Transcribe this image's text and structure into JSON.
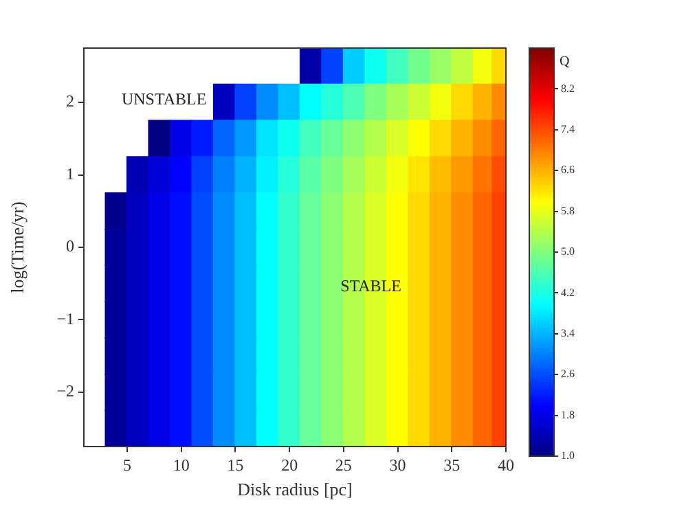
{
  "chart_data": {
    "type": "heatmap",
    "xlabel": "Disk radius [pc]",
    "ylabel": "log(Time/yr)",
    "clabel": "Q",
    "x": [
      4,
      6,
      8,
      10,
      12,
      14,
      16,
      18,
      20,
      22,
      24,
      26,
      28,
      30,
      32,
      34,
      36,
      38,
      39.5
    ],
    "y_categories": [
      null,
      "2",
      null,
      "1",
      null,
      "0",
      null,
      "−1",
      null,
      "−2",
      null
    ],
    "cells": [
      [
        null,
        null,
        null,
        null,
        null,
        null,
        null,
        null,
        null,
        1.3,
        2.5,
        3.6,
        4.1,
        4.5,
        4.9,
        5.2,
        5.5,
        5.9,
        6.3
      ],
      [
        null,
        null,
        null,
        null,
        null,
        1.5,
        2.5,
        3.1,
        3.5,
        4.0,
        4.3,
        4.6,
        5.0,
        5.3,
        5.6,
        5.9,
        6.3,
        6.6,
        6.9
      ],
      [
        null,
        null,
        1.0,
        1.8,
        2.2,
        2.8,
        3.2,
        3.8,
        4.1,
        4.5,
        4.8,
        5.1,
        5.4,
        5.7,
        6.0,
        6.3,
        6.6,
        6.9,
        7.2
      ],
      [
        null,
        1.4,
        1.7,
        2.0,
        2.5,
        3.0,
        3.4,
        3.9,
        4.3,
        4.7,
        5.0,
        5.3,
        5.6,
        5.9,
        6.2,
        6.5,
        6.8,
        7.1,
        7.4
      ],
      [
        1.1,
        1.5,
        1.8,
        2.1,
        2.6,
        3.1,
        3.5,
        4.0,
        4.4,
        4.8,
        5.1,
        5.4,
        5.7,
        6.0,
        6.3,
        6.6,
        6.9,
        7.2,
        7.5
      ],
      [
        1.2,
        1.5,
        1.8,
        2.1,
        2.6,
        3.1,
        3.5,
        4.0,
        4.4,
        4.8,
        5.1,
        5.4,
        5.7,
        6.0,
        6.3,
        6.6,
        6.9,
        7.2,
        7.5
      ],
      [
        1.2,
        1.5,
        1.8,
        2.1,
        2.6,
        3.1,
        3.5,
        4.0,
        4.4,
        4.8,
        5.1,
        5.4,
        5.7,
        6.0,
        6.3,
        6.6,
        6.9,
        7.2,
        7.5
      ],
      [
        1.2,
        1.5,
        1.8,
        2.1,
        2.6,
        3.1,
        3.5,
        4.0,
        4.4,
        4.8,
        5.1,
        5.4,
        5.7,
        6.0,
        6.3,
        6.6,
        6.9,
        7.2,
        7.5
      ],
      [
        1.2,
        1.5,
        1.8,
        2.1,
        2.6,
        3.1,
        3.5,
        4.0,
        4.4,
        4.8,
        5.1,
        5.4,
        5.7,
        6.0,
        6.3,
        6.6,
        6.9,
        7.2,
        7.5
      ],
      [
        1.2,
        1.5,
        1.8,
        2.1,
        2.6,
        3.1,
        3.5,
        4.0,
        4.4,
        4.8,
        5.1,
        5.4,
        5.7,
        6.0,
        6.3,
        6.6,
        6.9,
        7.2,
        7.5
      ],
      [
        1.2,
        1.5,
        1.8,
        2.1,
        2.6,
        3.1,
        3.5,
        4.0,
        4.4,
        4.8,
        5.1,
        5.4,
        5.7,
        6.0,
        6.3,
        6.6,
        6.9,
        7.2,
        7.5
      ]
    ],
    "xlim": [
      1,
      40
    ],
    "xticks": [
      5,
      10,
      15,
      20,
      25,
      30,
      35,
      40
    ],
    "clim": [
      1.0,
      9.0
    ],
    "cticks": [
      {
        "value": 1,
        "label": "1.0"
      },
      {
        "value": 1.8,
        "label": "1.8"
      },
      {
        "value": 2.6,
        "label": "2.6"
      },
      {
        "value": 3.4,
        "label": "3.4"
      },
      {
        "value": 4.2,
        "label": "4.2"
      },
      {
        "value": 5,
        "label": "5.0"
      },
      {
        "value": 5.8,
        "label": "5.8"
      },
      {
        "value": 6.6,
        "label": "6.6"
      },
      {
        "value": 7.4,
        "label": "7.4"
      },
      {
        "value": 8.2,
        "label": "8.2"
      }
    ],
    "annotations": [
      "UNSTABLE",
      "STABLE"
    ],
    "grid": false
  }
}
